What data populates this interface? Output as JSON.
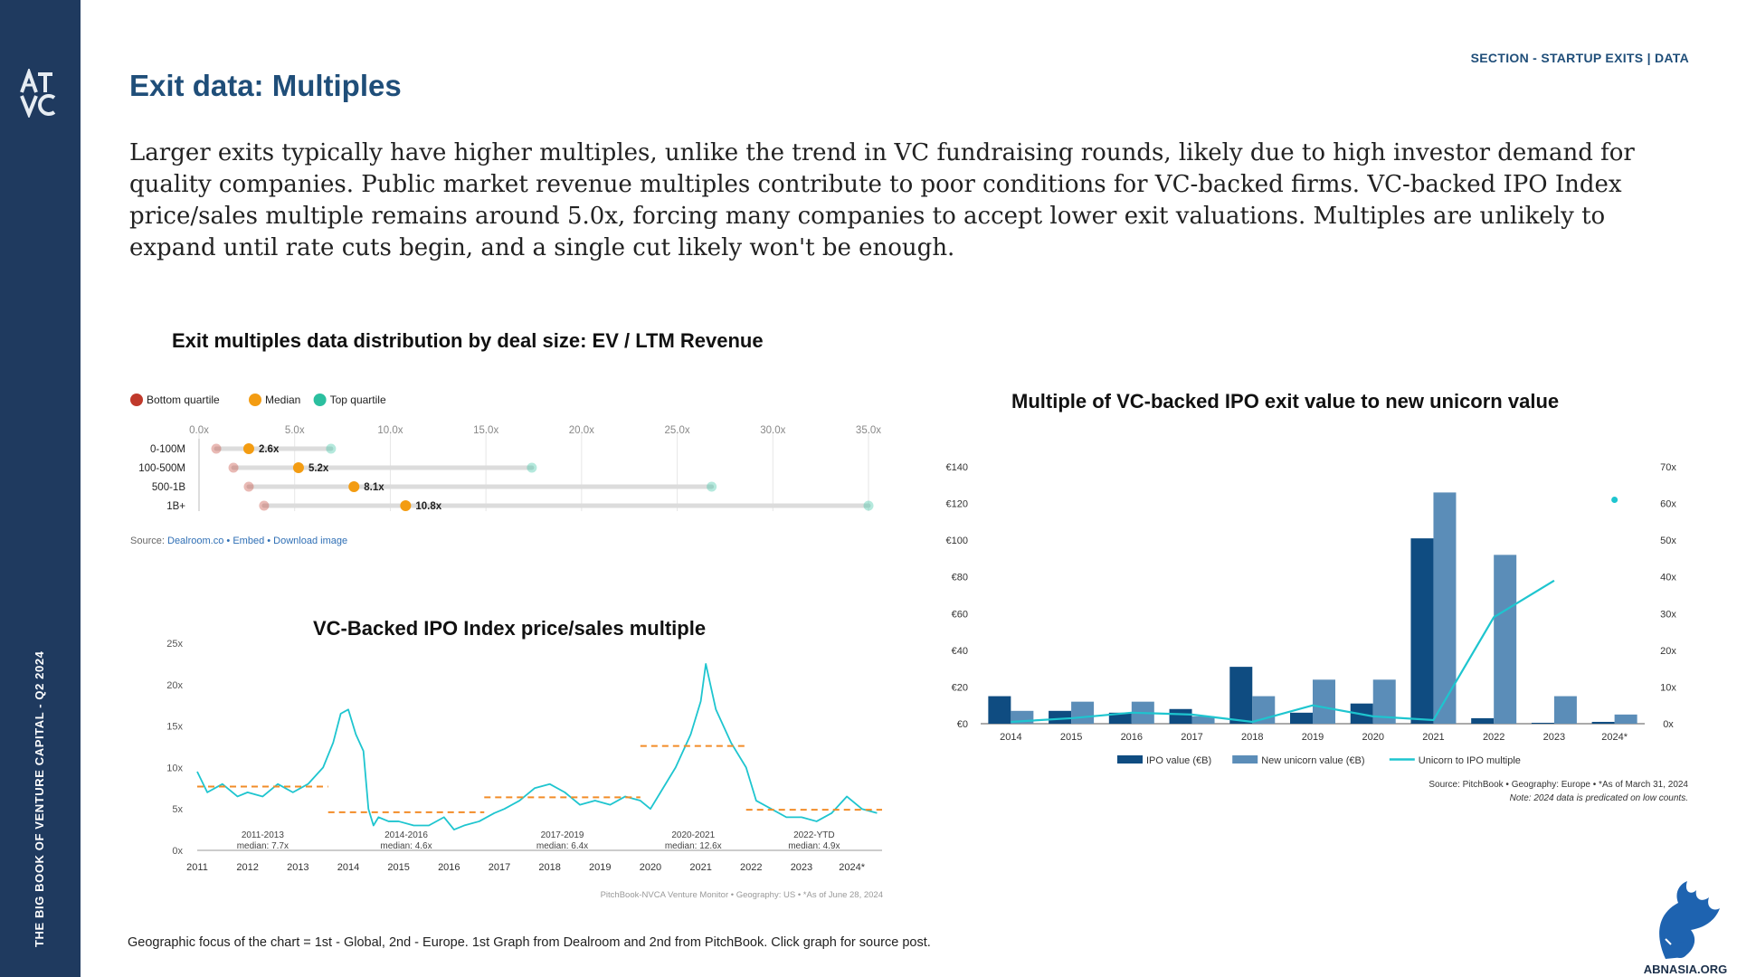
{
  "sidebar": {
    "logo_text": "ATVC",
    "vertical_text": "THE BIG BOOK OF VENTURE CAPITAL - Q2 2024"
  },
  "header": {
    "section_label": "SECTION - STARTUP EXITS | DATA",
    "title": "Exit data: Multiples"
  },
  "body_text": "Larger exits typically have higher multiples, unlike the trend in VC fundraising rounds, likely due to high investor demand for quality companies. Public market revenue multiples contribute to poor conditions for VC-backed firms. VC-backed IPO Index price/sales multiple remains around 5.0x, forcing many companies to accept lower exit valuations. Multiples are unlikely to expand until rate cuts begin, and a single cut likely won't be enough.",
  "footnote": "Geographic focus of the chart = 1st - Global, 2nd - Europe. 1st Graph from Dealroom and 2nd from PitchBook. Click graph for source post.",
  "watermark": {
    "text": "ABNASIA.ORG"
  },
  "colors": {
    "navy": "#1f3a5f",
    "title_blue": "#1f4e79",
    "bottom": "#c0392b",
    "median": "#f39c12",
    "top": "#2bbf9f",
    "ipo_bar": "#0f4c81",
    "unicorn_bar": "#5b8db8",
    "line": "#1ec5cf",
    "dash": "#f28c28"
  },
  "chart_data": [
    {
      "type": "scatter",
      "title": "Exit multiples data distribution by deal size: EV / LTM Revenue",
      "legend": [
        "Bottom quartile",
        "Median",
        "Top quartile"
      ],
      "legend_position": "top-left",
      "x_ticks": [
        "0.0x",
        "5.0x",
        "10.0x",
        "15.0x",
        "20.0x",
        "25.0x",
        "30.0x",
        "35.0x"
      ],
      "xlim": [
        0,
        35
      ],
      "categories": [
        "0-100M",
        "100-500M",
        "500-1B",
        "1B+"
      ],
      "series": [
        {
          "name": "Bottom quartile",
          "values": [
            0.9,
            1.8,
            2.6,
            3.4
          ]
        },
        {
          "name": "Median",
          "values": [
            2.6,
            5.2,
            8.1,
            10.8
          ]
        },
        {
          "name": "Top quartile",
          "values": [
            6.9,
            17.4,
            26.8,
            35.0
          ]
        }
      ],
      "median_labels": [
        "2.6x",
        "5.2x",
        "8.1x",
        "10.8x"
      ],
      "source": {
        "prefix": "Source: ",
        "link1": "Dealroom.co",
        "sep1": " • ",
        "link2": "Embed",
        "sep2": " • ",
        "link3": "Download image"
      }
    },
    {
      "type": "bar",
      "title": "Multiple of VC-backed IPO exit value to new unicorn value",
      "categories": [
        "2014",
        "2015",
        "2016",
        "2017",
        "2018",
        "2019",
        "2020",
        "2021",
        "2022",
        "2023",
        "2024*"
      ],
      "series": [
        {
          "name": "IPO value (€B)",
          "axis": "left",
          "values": [
            15,
            7,
            6,
            8,
            31,
            6,
            11,
            101,
            3,
            0.5,
            1
          ]
        },
        {
          "name": "New unicorn value (€B)",
          "axis": "left",
          "values": [
            7,
            12,
            12,
            4,
            15,
            24,
            24,
            126,
            92,
            15,
            5
          ]
        },
        {
          "name": "Unicorn to IPO multiple",
          "axis": "right",
          "type": "line",
          "values": [
            0.5,
            1.5,
            3,
            2.5,
            0.5,
            5,
            2,
            1,
            29,
            39,
            61
          ]
        }
      ],
      "y_left_ticks": [
        "€0",
        "€20",
        "€40",
        "€60",
        "€80",
        "€100",
        "€120",
        "€140"
      ],
      "y_right_ticks": [
        "0x",
        "10x",
        "20x",
        "30x",
        "40x",
        "50x",
        "60x",
        "70x"
      ],
      "ylim_left": [
        0,
        140
      ],
      "ylim_right": [
        0,
        70
      ],
      "legend_position": "bottom",
      "source": "Source: PitchBook  •  Geography: Europe  •  *As of March 31, 2024",
      "note": "Note: 2024 data is predicated on low counts."
    },
    {
      "type": "line",
      "title": "VC-Backed IPO Index price/sales multiple",
      "x_ticks": [
        "2011",
        "2012",
        "2013",
        "2014",
        "2015",
        "2016",
        "2017",
        "2018",
        "2019",
        "2020",
        "2021",
        "2022",
        "2023",
        "2024*"
      ],
      "y_ticks": [
        "0x",
        "5x",
        "10x",
        "15x",
        "20x",
        "25x"
      ],
      "ylim": [
        0,
        25
      ],
      "xlim": [
        2011.0,
        2024.6
      ],
      "series": [
        {
          "name": "VC-backed IPO Index price/sales",
          "x": [
            2011.0,
            2011.2,
            2011.5,
            2011.8,
            2012.0,
            2012.3,
            2012.6,
            2012.9,
            2013.2,
            2013.5,
            2013.7,
            2013.85,
            2014.0,
            2014.15,
            2014.3,
            2014.4,
            2014.5,
            2014.6,
            2014.8,
            2015.0,
            2015.3,
            2015.6,
            2015.9,
            2016.1,
            2016.3,
            2016.6,
            2016.9,
            2017.1,
            2017.4,
            2017.7,
            2018.0,
            2018.3,
            2018.6,
            2018.9,
            2019.2,
            2019.5,
            2019.8,
            2020.0,
            2020.2,
            2020.5,
            2020.8,
            2021.0,
            2021.1,
            2021.3,
            2021.6,
            2021.9,
            2022.1,
            2022.4,
            2022.7,
            2023.0,
            2023.3,
            2023.6,
            2023.9,
            2024.2,
            2024.5
          ],
          "values": [
            9.5,
            7.0,
            8.0,
            6.5,
            7.0,
            6.5,
            8.0,
            7.0,
            8.0,
            10.0,
            13.0,
            16.5,
            17.0,
            14.0,
            12.0,
            5.0,
            3.0,
            4.0,
            3.5,
            3.5,
            3.0,
            3.0,
            4.0,
            2.5,
            3.0,
            3.5,
            4.5,
            5.0,
            6.0,
            7.5,
            8.0,
            7.0,
            5.5,
            6.0,
            5.5,
            6.5,
            6.0,
            5.0,
            7.0,
            10.0,
            14.0,
            18.0,
            22.5,
            17.0,
            13.0,
            10.0,
            6.0,
            5.0,
            4.0,
            4.0,
            3.5,
            4.5,
            6.5,
            5.0,
            4.5
          ]
        }
      ],
      "medians": [
        {
          "label": "2011-2013",
          "value_label": "median: 7.7x",
          "value": 7.7,
          "x_start": 2011.0,
          "x_end": 2013.6
        },
        {
          "label": "2014-2016",
          "value_label": "median: 4.6x",
          "value": 4.6,
          "x_start": 2013.6,
          "x_end": 2016.7
        },
        {
          "label": "2017-2019",
          "value_label": "median: 6.4x",
          "value": 6.4,
          "x_start": 2016.7,
          "x_end": 2019.8
        },
        {
          "label": "2020-2021",
          "value_label": "median: 12.6x",
          "value": 12.6,
          "x_start": 2019.8,
          "x_end": 2021.9
        },
        {
          "label": "2022-YTD",
          "value_label": "median: 4.9x",
          "value": 4.9,
          "x_start": 2021.9,
          "x_end": 2024.6
        }
      ],
      "source": "PitchBook-NVCA Venture Monitor  •  Geography: US  •  *As of June 28, 2024"
    }
  ]
}
